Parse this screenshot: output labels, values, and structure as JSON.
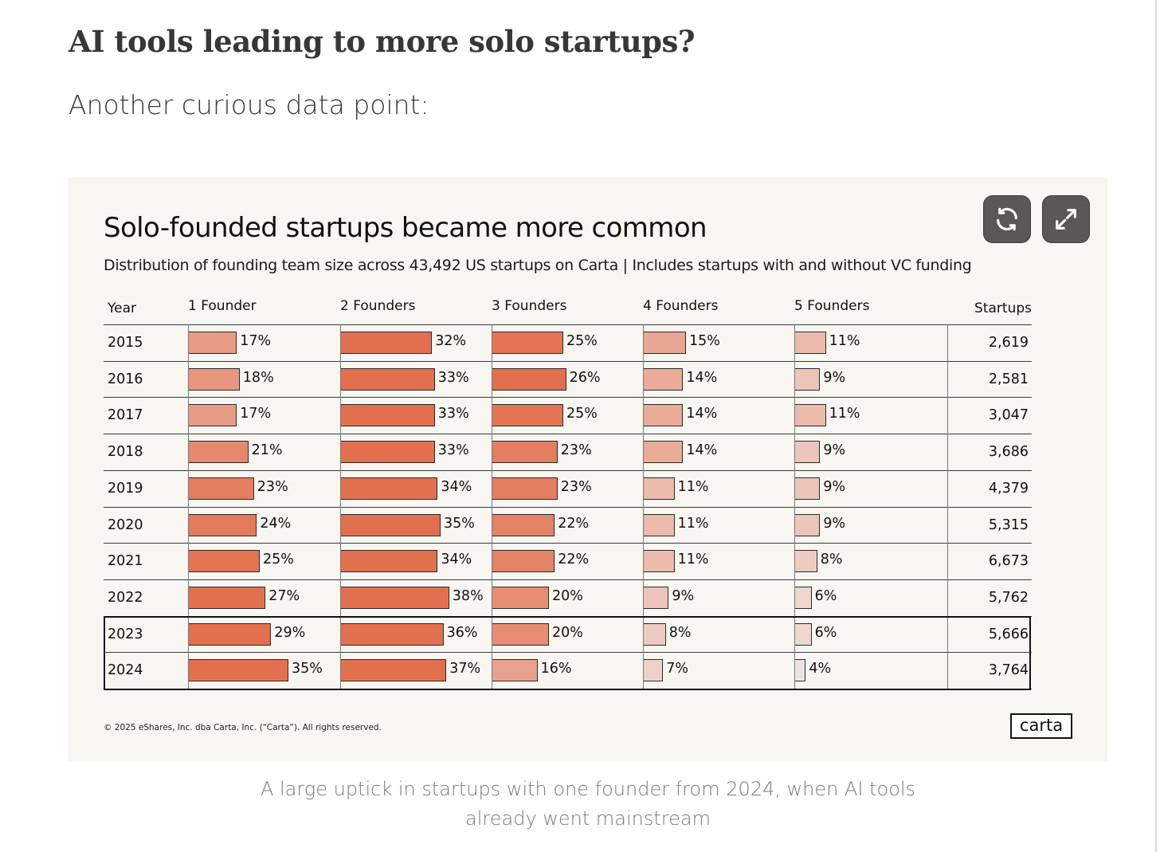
{
  "article": {
    "heading": "AI tools leading to more solo startups?",
    "lead": "Another curious data point:",
    "caption": "A large uptick in startups with one founder from 2024, when AI tools already went mainstream"
  },
  "card": {
    "buttons": {
      "refresh_icon": "refresh-icon",
      "expand_icon": "expand-icon"
    },
    "copyright": "© 2025 eShares, Inc. dba Carta, Inc. (“Carta”). All rights reserved.",
    "logo": "carta"
  },
  "chart_data": {
    "type": "table",
    "title": "Solo-founded startups became more common",
    "subtitle": "Distribution of founding team size across 43,492 US startups on Carta | Includes startups with and without VC funding",
    "columns": [
      "Year",
      "1 Founder",
      "2 Founders",
      "3 Founders",
      "4 Founders",
      "5 Founders",
      "Startups"
    ],
    "highlighted_years": [
      "2023",
      "2024"
    ],
    "colors": {
      "high": "#e2704f",
      "low": "#f1e4e0"
    },
    "rows": [
      {
        "year": "2015",
        "values": [
          17,
          32,
          25,
          15,
          11
        ],
        "startups": "2,619"
      },
      {
        "year": "2016",
        "values": [
          18,
          33,
          26,
          14,
          9
        ],
        "startups": "2,581"
      },
      {
        "year": "2017",
        "values": [
          17,
          33,
          25,
          14,
          11
        ],
        "startups": "3,047"
      },
      {
        "year": "2018",
        "values": [
          21,
          33,
          23,
          14,
          9
        ],
        "startups": "3,686"
      },
      {
        "year": "2019",
        "values": [
          23,
          34,
          23,
          11,
          9
        ],
        "startups": "4,379"
      },
      {
        "year": "2020",
        "values": [
          24,
          35,
          22,
          11,
          9
        ],
        "startups": "5,315"
      },
      {
        "year": "2021",
        "values": [
          25,
          34,
          22,
          11,
          8
        ],
        "startups": "6,673"
      },
      {
        "year": "2022",
        "values": [
          27,
          38,
          20,
          9,
          6
        ],
        "startups": "5,762"
      },
      {
        "year": "2023",
        "values": [
          29,
          36,
          20,
          8,
          6
        ],
        "startups": "5,666"
      },
      {
        "year": "2024",
        "values": [
          35,
          37,
          16,
          7,
          4
        ],
        "startups": "3,764"
      }
    ]
  }
}
